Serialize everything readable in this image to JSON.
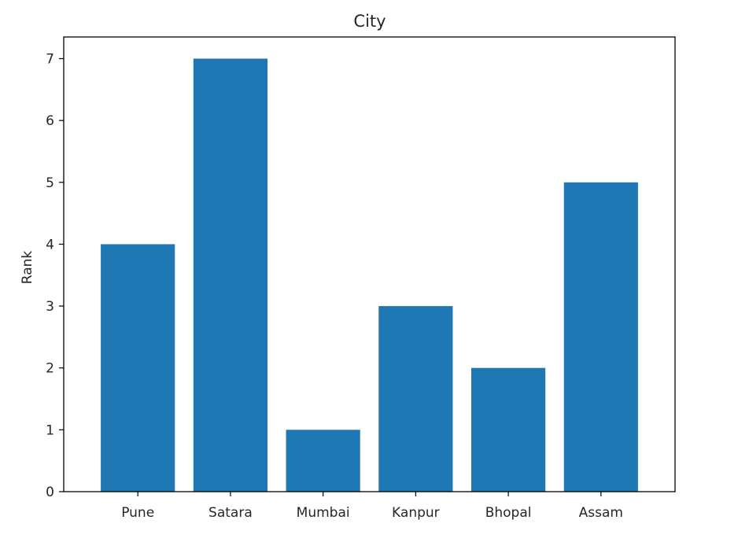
{
  "chart_data": {
    "type": "bar",
    "title": "City",
    "xlabel": "",
    "ylabel": "Rank",
    "categories": [
      "Pune",
      "Satara",
      "Mumbai",
      "Kanpur",
      "Bhopal",
      "Assam"
    ],
    "values": [
      4,
      7,
      1,
      3,
      2,
      5
    ],
    "ylim": [
      0,
      7.35
    ],
    "yticks": [
      "0",
      "1",
      "2",
      "3",
      "4",
      "5",
      "6",
      "7"
    ],
    "bar_color": "#1f77b4",
    "grid": false,
    "legend": "none"
  }
}
